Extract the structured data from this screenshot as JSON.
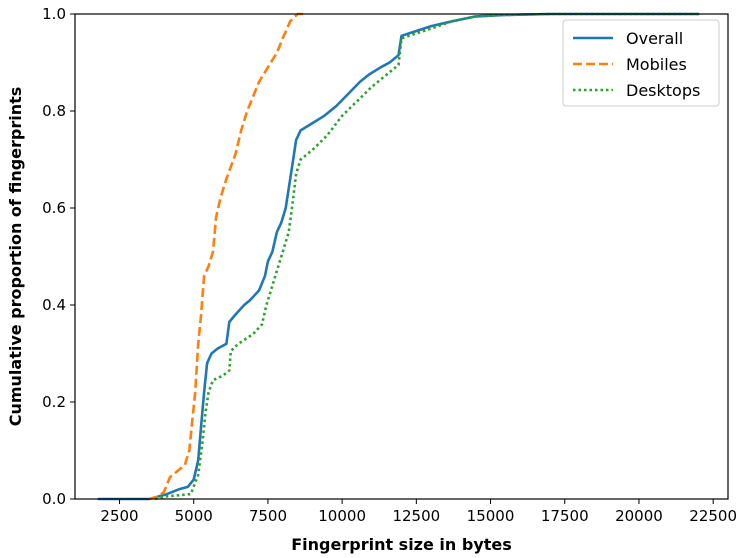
{
  "chart_data": {
    "type": "line",
    "title": "",
    "xlabel": "Fingerprint size in bytes",
    "ylabel": "Cumulative proportion of fingerprints",
    "xlim": [
      1000,
      23000
    ],
    "ylim": [
      0.0,
      1.0
    ],
    "x_ticks": [
      2500,
      5000,
      7500,
      10000,
      12500,
      15000,
      17500,
      20000,
      22500
    ],
    "y_ticks": [
      0.0,
      0.2,
      0.4,
      0.6,
      0.8,
      1.0
    ],
    "x_tick_labels": [
      "2500",
      "5000",
      "7500",
      "10000",
      "12500",
      "15000",
      "17500",
      "20000",
      "22500"
    ],
    "y_tick_labels": [
      "0.0",
      "0.2",
      "0.4",
      "0.6",
      "0.8",
      "1.0"
    ],
    "grid": false,
    "legend_position": "top-right",
    "series": [
      {
        "name": "Overall",
        "color": "#1f77b4",
        "style": "solid",
        "points": [
          [
            1800,
            0.0
          ],
          [
            3500,
            0.0
          ],
          [
            4100,
            0.01
          ],
          [
            4500,
            0.02
          ],
          [
            4800,
            0.025
          ],
          [
            5000,
            0.04
          ],
          [
            5150,
            0.08
          ],
          [
            5250,
            0.15
          ],
          [
            5350,
            0.22
          ],
          [
            5450,
            0.28
          ],
          [
            5600,
            0.3
          ],
          [
            5800,
            0.31
          ],
          [
            6100,
            0.32
          ],
          [
            6200,
            0.365
          ],
          [
            6400,
            0.38
          ],
          [
            6700,
            0.4
          ],
          [
            6900,
            0.41
          ],
          [
            7200,
            0.43
          ],
          [
            7400,
            0.46
          ],
          [
            7500,
            0.49
          ],
          [
            7650,
            0.51
          ],
          [
            7800,
            0.55
          ],
          [
            7950,
            0.57
          ],
          [
            8100,
            0.6
          ],
          [
            8250,
            0.66
          ],
          [
            8350,
            0.7
          ],
          [
            8450,
            0.74
          ],
          [
            8600,
            0.76
          ],
          [
            9000,
            0.775
          ],
          [
            9400,
            0.79
          ],
          [
            9800,
            0.81
          ],
          [
            10200,
            0.835
          ],
          [
            10600,
            0.86
          ],
          [
            10900,
            0.875
          ],
          [
            11300,
            0.89
          ],
          [
            11600,
            0.9
          ],
          [
            11900,
            0.915
          ],
          [
            12000,
            0.955
          ],
          [
            12500,
            0.965
          ],
          [
            13000,
            0.975
          ],
          [
            13700,
            0.985
          ],
          [
            14500,
            0.995
          ],
          [
            15500,
            0.998
          ],
          [
            17000,
            1.0
          ],
          [
            22000,
            1.0
          ]
        ]
      },
      {
        "name": "Mobiles",
        "color": "#ff7f0e",
        "style": "dashed",
        "points": [
          [
            3500,
            0.0
          ],
          [
            3800,
            0.005
          ],
          [
            4000,
            0.015
          ],
          [
            4200,
            0.045
          ],
          [
            4500,
            0.06
          ],
          [
            4700,
            0.07
          ],
          [
            4850,
            0.1
          ],
          [
            4950,
            0.16
          ],
          [
            5050,
            0.22
          ],
          [
            5150,
            0.32
          ],
          [
            5250,
            0.38
          ],
          [
            5350,
            0.46
          ],
          [
            5500,
            0.48
          ],
          [
            5650,
            0.51
          ],
          [
            5750,
            0.58
          ],
          [
            5900,
            0.62
          ],
          [
            6100,
            0.66
          ],
          [
            6400,
            0.71
          ],
          [
            6600,
            0.76
          ],
          [
            6800,
            0.8
          ],
          [
            7000,
            0.83
          ],
          [
            7200,
            0.86
          ],
          [
            7500,
            0.89
          ],
          [
            7800,
            0.92
          ],
          [
            8000,
            0.95
          ],
          [
            8250,
            0.985
          ],
          [
            8500,
            1.0
          ],
          [
            8700,
            1.0
          ]
        ]
      },
      {
        "name": "Desktops",
        "color": "#2ca02c",
        "style": "dotted",
        "points": [
          [
            3700,
            0.0
          ],
          [
            4000,
            0.005
          ],
          [
            4900,
            0.01
          ],
          [
            5150,
            0.05
          ],
          [
            5300,
            0.12
          ],
          [
            5400,
            0.18
          ],
          [
            5500,
            0.22
          ],
          [
            5650,
            0.245
          ],
          [
            6000,
            0.255
          ],
          [
            6200,
            0.265
          ],
          [
            6250,
            0.305
          ],
          [
            6500,
            0.32
          ],
          [
            7000,
            0.34
          ],
          [
            7300,
            0.36
          ],
          [
            7450,
            0.4
          ],
          [
            7600,
            0.43
          ],
          [
            7800,
            0.47
          ],
          [
            8000,
            0.51
          ],
          [
            8200,
            0.55
          ],
          [
            8350,
            0.62
          ],
          [
            8450,
            0.67
          ],
          [
            8600,
            0.7
          ],
          [
            9000,
            0.72
          ],
          [
            9500,
            0.75
          ],
          [
            10000,
            0.79
          ],
          [
            10500,
            0.82
          ],
          [
            11000,
            0.85
          ],
          [
            11500,
            0.875
          ],
          [
            11900,
            0.895
          ],
          [
            12000,
            0.95
          ],
          [
            12500,
            0.96
          ],
          [
            13000,
            0.97
          ],
          [
            13700,
            0.985
          ],
          [
            14500,
            0.995
          ],
          [
            15500,
            0.998
          ],
          [
            17000,
            1.0
          ],
          [
            22000,
            1.0
          ]
        ]
      }
    ]
  }
}
